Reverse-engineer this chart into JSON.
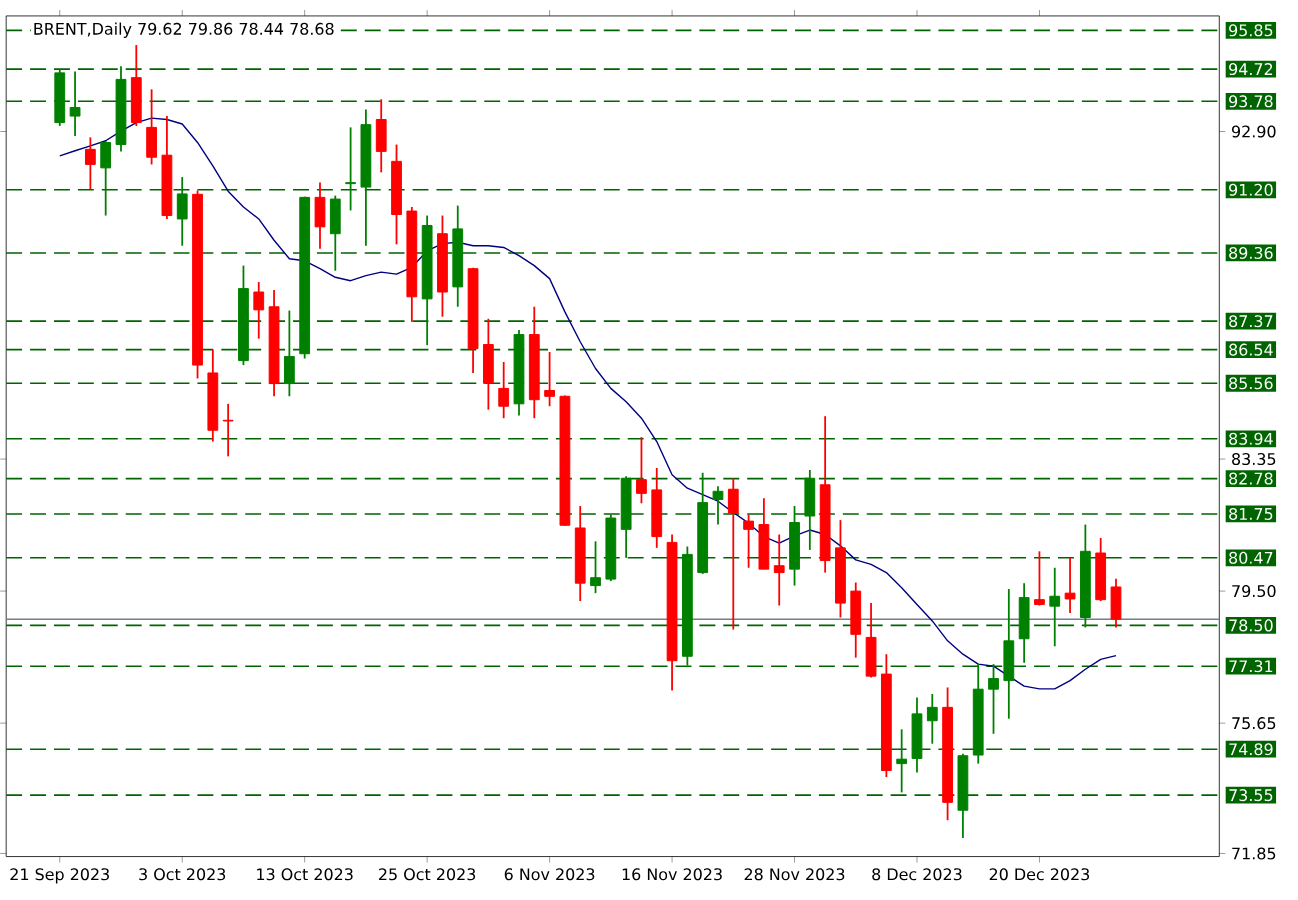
{
  "chart_data": {
    "type": "candlestick",
    "title": "BRENT,Daily  79.62 79.86 78.44 78.68",
    "categories": [
      "21 Sep 2023",
      null,
      null,
      null,
      null,
      null,
      null,
      null,
      "3 Oct 2023",
      null,
      null,
      null,
      null,
      null,
      null,
      null,
      "13 Oct 2023",
      null,
      null,
      null,
      null,
      null,
      null,
      null,
      "25 Oct 2023",
      null,
      null,
      null,
      null,
      null,
      null,
      null,
      "6 Nov 2023",
      null,
      null,
      null,
      null,
      null,
      null,
      null,
      "16 Nov 2023",
      null,
      null,
      null,
      null,
      null,
      null,
      null,
      "28 Nov 2023",
      null,
      null,
      null,
      null,
      null,
      null,
      null,
      "8 Dec 2023",
      null,
      null,
      null,
      null,
      null,
      null,
      null,
      "20 Dec 2023",
      null,
      null,
      null,
      null,
      null
    ],
    "ohlc": [
      [
        93.16,
        94.71,
        93.06,
        94.61
      ],
      [
        93.35,
        94.65,
        92.77,
        93.6
      ],
      [
        92.38,
        92.73,
        91.22,
        91.94
      ],
      [
        91.84,
        92.62,
        90.45,
        92.58
      ],
      [
        92.52,
        94.8,
        92.32,
        94.42
      ],
      [
        94.47,
        95.42,
        93.06,
        93.16
      ],
      [
        93.02,
        94.13,
        91.94,
        92.15
      ],
      [
        92.21,
        93.35,
        90.35,
        90.45
      ],
      [
        90.35,
        91.57,
        89.57,
        91.08
      ],
      [
        91.07,
        91.18,
        85.7,
        86.09
      ],
      [
        85.86,
        86.53,
        83.86,
        84.19
      ],
      [
        84.48,
        84.96,
        83.43,
        84.46
      ],
      [
        86.22,
        88.99,
        86.09,
        88.32
      ],
      [
        88.22,
        88.51,
        86.86,
        87.7
      ],
      [
        87.79,
        88.28,
        85.18,
        85.55
      ],
      [
        85.55,
        87.68,
        85.18,
        86.34
      ],
      [
        86.42,
        91.0,
        86.28,
        90.98
      ],
      [
        90.98,
        91.41,
        89.48,
        90.12
      ],
      [
        89.92,
        91.03,
        88.84,
        90.93
      ],
      [
        91.38,
        93.02,
        90.6,
        91.41
      ],
      [
        91.28,
        93.54,
        89.57,
        93.1
      ],
      [
        93.25,
        93.84,
        91.71,
        92.32
      ],
      [
        92.03,
        92.52,
        89.61,
        90.48
      ],
      [
        90.58,
        90.7,
        87.35,
        88.08
      ],
      [
        88.02,
        90.45,
        86.67,
        90.16
      ],
      [
        89.92,
        90.45,
        87.5,
        88.22
      ],
      [
        88.37,
        90.74,
        87.79,
        90.06
      ],
      [
        88.9,
        88.93,
        85.86,
        86.57
      ],
      [
        86.69,
        87.44,
        84.79,
        85.56
      ],
      [
        85.41,
        86.18,
        84.54,
        84.89
      ],
      [
        84.96,
        87.11,
        84.62,
        86.98
      ],
      [
        86.98,
        87.79,
        84.54,
        85.08
      ],
      [
        85.35,
        86.47,
        84.89,
        85.18
      ],
      [
        85.18,
        85.2,
        81.4,
        81.42
      ],
      [
        81.34,
        81.98,
        79.21,
        79.73
      ],
      [
        79.66,
        80.95,
        79.44,
        79.89
      ],
      [
        79.85,
        81.73,
        79.79,
        81.63
      ],
      [
        81.3,
        82.85,
        80.47,
        82.79
      ],
      [
        82.75,
        83.99,
        82.06,
        82.35
      ],
      [
        82.45,
        83.09,
        80.76,
        81.09
      ],
      [
        80.92,
        81.15,
        76.6,
        77.47
      ],
      [
        77.6,
        80.8,
        77.33,
        80.57
      ],
      [
        80.04,
        82.95,
        80.0,
        82.08
      ],
      [
        82.17,
        82.56,
        81.44,
        82.41
      ],
      [
        82.47,
        82.79,
        78.38,
        81.77
      ],
      [
        81.54,
        81.73,
        80.18,
        81.3
      ],
      [
        81.44,
        82.21,
        80.14,
        80.14
      ],
      [
        80.24,
        81.15,
        79.08,
        80.04
      ],
      [
        80.14,
        81.98,
        79.66,
        81.5
      ],
      [
        81.69,
        83.03,
        80.7,
        82.79
      ],
      [
        82.6,
        84.6,
        80.04,
        80.39
      ],
      [
        80.76,
        81.57,
        78.73,
        79.15
      ],
      [
        79.5,
        79.75,
        77.56,
        78.24
      ],
      [
        78.15,
        79.15,
        76.98,
        77.02
      ],
      [
        77.08,
        77.66,
        74.08,
        74.27
      ],
      [
        74.47,
        75.47,
        73.63,
        74.6
      ],
      [
        74.62,
        76.4,
        74.21,
        75.92
      ],
      [
        75.72,
        76.5,
        75.05,
        76.11
      ],
      [
        76.11,
        76.69,
        72.82,
        73.34
      ],
      [
        73.11,
        74.76,
        72.3,
        74.7
      ],
      [
        74.72,
        77.37,
        74.47,
        76.64
      ],
      [
        76.64,
        77.37,
        75.34,
        76.95
      ],
      [
        76.89,
        79.56,
        75.78,
        78.05
      ],
      [
        78.11,
        79.73,
        77.41,
        79.31
      ],
      [
        79.25,
        80.66,
        79.08,
        79.11
      ],
      [
        79.06,
        80.18,
        77.89,
        79.35
      ],
      [
        79.44,
        80.47,
        78.86,
        79.27
      ],
      [
        78.73,
        81.44,
        78.44,
        80.66
      ],
      [
        80.61,
        81.05,
        79.21,
        79.25
      ],
      [
        79.62,
        79.86,
        78.44,
        78.68
      ]
    ],
    "colors": [
      "#008000",
      "#008000",
      "#ff0000",
      "#008000",
      "#008000",
      "#ff0000",
      "#ff0000",
      "#ff0000",
      "#008000",
      "#ff0000",
      "#ff0000",
      "#ff0000",
      "#008000",
      "#ff0000",
      "#ff0000",
      "#008000",
      "#008000",
      "#ff0000",
      "#008000",
      "#008000",
      "#008000",
      "#ff0000",
      "#ff0000",
      "#ff0000",
      "#008000",
      "#ff0000",
      "#008000",
      "#ff0000",
      "#ff0000",
      "#ff0000",
      "#008000",
      "#ff0000",
      "#ff0000",
      "#ff0000",
      "#ff0000",
      "#008000",
      "#008000",
      "#008000",
      "#ff0000",
      "#ff0000",
      "#ff0000",
      "#008000",
      "#008000",
      "#008000",
      "#ff0000",
      "#ff0000",
      "#ff0000",
      "#ff0000",
      "#008000",
      "#008000",
      "#ff0000",
      "#ff0000",
      "#ff0000",
      "#ff0000",
      "#ff0000",
      "#008000",
      "#008000",
      "#008000",
      "#ff0000",
      "#008000",
      "#008000",
      "#008000",
      "#008000",
      "#008000",
      "#ff0000",
      "#008000",
      "#ff0000",
      "#008000",
      "#ff0000",
      "#ff0000"
    ],
    "series": [
      {
        "type": "line",
        "color": "#000080",
        "values": [
          92.19,
          92.34,
          92.48,
          92.63,
          92.91,
          93.16,
          93.29,
          93.25,
          93.12,
          92.58,
          91.9,
          91.16,
          90.7,
          90.35,
          89.73,
          89.19,
          89.13,
          88.9,
          88.65,
          88.55,
          88.7,
          88.8,
          88.74,
          88.94,
          89.42,
          89.63,
          89.67,
          89.57,
          89.57,
          89.52,
          89.28,
          88.99,
          88.61,
          87.64,
          86.77,
          85.99,
          85.41,
          85.02,
          84.54,
          83.86,
          82.89,
          82.5,
          82.31,
          82.12,
          81.79,
          81.48,
          81.09,
          80.9,
          81.11,
          81.28,
          81.15,
          80.82,
          80.41,
          80.28,
          80.04,
          79.6,
          79.11,
          78.63,
          78.05,
          77.66,
          77.37,
          77.31,
          77.02,
          76.73,
          76.65,
          76.65,
          76.89,
          77.22,
          77.51,
          77.62
        ]
      }
    ],
    "ylim": [
      71.76,
      96.27
    ],
    "yticks": [
      {
        "value": 92.9,
        "label": "92.90"
      },
      {
        "value": 83.35,
        "label": "83.35"
      },
      {
        "value": 79.5,
        "label": "79.50"
      },
      {
        "value": 75.65,
        "label": "75.65"
      },
      {
        "value": 71.85,
        "label": "71.85"
      }
    ],
    "ref_lines": [
      {
        "axis": "y",
        "value": 95.85,
        "label": "95.85",
        "color": "#006400",
        "line_style": "dashed"
      },
      {
        "axis": "y",
        "value": 94.72,
        "label": "94.72",
        "color": "#006400",
        "line_style": "dashed"
      },
      {
        "axis": "y",
        "value": 93.78,
        "label": "93.78",
        "color": "#006400",
        "line_style": "dashed"
      },
      {
        "axis": "y",
        "value": 91.2,
        "label": "91.20",
        "color": "#006400",
        "line_style": "dashed"
      },
      {
        "axis": "y",
        "value": 89.36,
        "label": "89.36",
        "color": "#006400",
        "line_style": "dashed"
      },
      {
        "axis": "y",
        "value": 87.37,
        "label": "87.37",
        "color": "#006400",
        "line_style": "dashed"
      },
      {
        "axis": "y",
        "value": 86.54,
        "label": "86.54",
        "color": "#006400",
        "line_style": "dashed"
      },
      {
        "axis": "y",
        "value": 85.56,
        "label": "85.56",
        "color": "#006400",
        "line_style": "dashed"
      },
      {
        "axis": "y",
        "value": 83.94,
        "label": "83.94",
        "color": "#006400",
        "line_style": "dashed"
      },
      {
        "axis": "y",
        "value": 82.78,
        "label": "82.78",
        "color": "#006400",
        "line_style": "dashed"
      },
      {
        "axis": "y",
        "value": 81.75,
        "label": "81.75",
        "color": "#006400",
        "line_style": "dashed"
      },
      {
        "axis": "y",
        "value": 80.47,
        "label": "80.47",
        "color": "#006400",
        "line_style": "dashed"
      },
      {
        "axis": "y",
        "value": 78.68,
        "color": "#708090",
        "line_style": "solid"
      },
      {
        "axis": "y",
        "value": 78.5,
        "label": "78.50",
        "color": "#006400",
        "line_style": "dashed"
      },
      {
        "axis": "y",
        "value": 77.31,
        "label": "77.31",
        "color": "#006400",
        "line_style": "dashed"
      },
      {
        "axis": "y",
        "value": 74.89,
        "label": "74.89",
        "color": "#006400",
        "line_style": "dashed"
      },
      {
        "axis": "y",
        "value": 73.55,
        "label": "73.55",
        "color": "#006400",
        "line_style": "dashed"
      }
    ]
  }
}
